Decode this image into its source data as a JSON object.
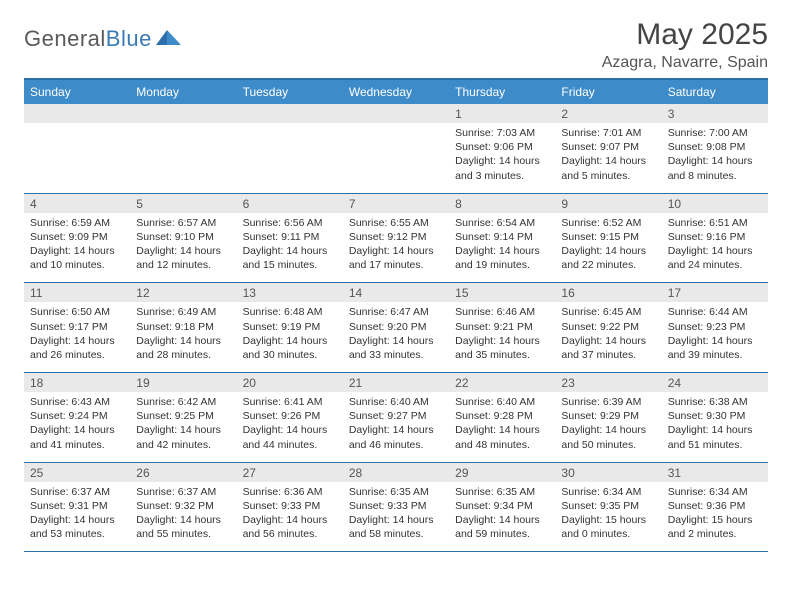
{
  "brand": {
    "name1": "General",
    "name2": "Blue"
  },
  "title": "May 2025",
  "location": "Azagra, Navarre, Spain",
  "day_headers": [
    "Sunday",
    "Monday",
    "Tuesday",
    "Wednesday",
    "Thursday",
    "Friday",
    "Saturday"
  ],
  "colors": {
    "header_bg": "#3d8bc8",
    "rule": "#2d6fa8",
    "daynum_bg": "#e9e9e9",
    "logo_blue": "#3a7ab8"
  },
  "labels": {
    "sunrise": "Sunrise:",
    "sunset": "Sunset:",
    "daylight": "Daylight:"
  },
  "weeks": [
    [
      null,
      null,
      null,
      null,
      {
        "n": "1",
        "sunrise": "7:03 AM",
        "sunset": "9:06 PM",
        "daylight": "14 hours and 3 minutes."
      },
      {
        "n": "2",
        "sunrise": "7:01 AM",
        "sunset": "9:07 PM",
        "daylight": "14 hours and 5 minutes."
      },
      {
        "n": "3",
        "sunrise": "7:00 AM",
        "sunset": "9:08 PM",
        "daylight": "14 hours and 8 minutes."
      }
    ],
    [
      {
        "n": "4",
        "sunrise": "6:59 AM",
        "sunset": "9:09 PM",
        "daylight": "14 hours and 10 minutes."
      },
      {
        "n": "5",
        "sunrise": "6:57 AM",
        "sunset": "9:10 PM",
        "daylight": "14 hours and 12 minutes."
      },
      {
        "n": "6",
        "sunrise": "6:56 AM",
        "sunset": "9:11 PM",
        "daylight": "14 hours and 15 minutes."
      },
      {
        "n": "7",
        "sunrise": "6:55 AM",
        "sunset": "9:12 PM",
        "daylight": "14 hours and 17 minutes."
      },
      {
        "n": "8",
        "sunrise": "6:54 AM",
        "sunset": "9:14 PM",
        "daylight": "14 hours and 19 minutes."
      },
      {
        "n": "9",
        "sunrise": "6:52 AM",
        "sunset": "9:15 PM",
        "daylight": "14 hours and 22 minutes."
      },
      {
        "n": "10",
        "sunrise": "6:51 AM",
        "sunset": "9:16 PM",
        "daylight": "14 hours and 24 minutes."
      }
    ],
    [
      {
        "n": "11",
        "sunrise": "6:50 AM",
        "sunset": "9:17 PM",
        "daylight": "14 hours and 26 minutes."
      },
      {
        "n": "12",
        "sunrise": "6:49 AM",
        "sunset": "9:18 PM",
        "daylight": "14 hours and 28 minutes."
      },
      {
        "n": "13",
        "sunrise": "6:48 AM",
        "sunset": "9:19 PM",
        "daylight": "14 hours and 30 minutes."
      },
      {
        "n": "14",
        "sunrise": "6:47 AM",
        "sunset": "9:20 PM",
        "daylight": "14 hours and 33 minutes."
      },
      {
        "n": "15",
        "sunrise": "6:46 AM",
        "sunset": "9:21 PM",
        "daylight": "14 hours and 35 minutes."
      },
      {
        "n": "16",
        "sunrise": "6:45 AM",
        "sunset": "9:22 PM",
        "daylight": "14 hours and 37 minutes."
      },
      {
        "n": "17",
        "sunrise": "6:44 AM",
        "sunset": "9:23 PM",
        "daylight": "14 hours and 39 minutes."
      }
    ],
    [
      {
        "n": "18",
        "sunrise": "6:43 AM",
        "sunset": "9:24 PM",
        "daylight": "14 hours and 41 minutes."
      },
      {
        "n": "19",
        "sunrise": "6:42 AM",
        "sunset": "9:25 PM",
        "daylight": "14 hours and 42 minutes."
      },
      {
        "n": "20",
        "sunrise": "6:41 AM",
        "sunset": "9:26 PM",
        "daylight": "14 hours and 44 minutes."
      },
      {
        "n": "21",
        "sunrise": "6:40 AM",
        "sunset": "9:27 PM",
        "daylight": "14 hours and 46 minutes."
      },
      {
        "n": "22",
        "sunrise": "6:40 AM",
        "sunset": "9:28 PM",
        "daylight": "14 hours and 48 minutes."
      },
      {
        "n": "23",
        "sunrise": "6:39 AM",
        "sunset": "9:29 PM",
        "daylight": "14 hours and 50 minutes."
      },
      {
        "n": "24",
        "sunrise": "6:38 AM",
        "sunset": "9:30 PM",
        "daylight": "14 hours and 51 minutes."
      }
    ],
    [
      {
        "n": "25",
        "sunrise": "6:37 AM",
        "sunset": "9:31 PM",
        "daylight": "14 hours and 53 minutes."
      },
      {
        "n": "26",
        "sunrise": "6:37 AM",
        "sunset": "9:32 PM",
        "daylight": "14 hours and 55 minutes."
      },
      {
        "n": "27",
        "sunrise": "6:36 AM",
        "sunset": "9:33 PM",
        "daylight": "14 hours and 56 minutes."
      },
      {
        "n": "28",
        "sunrise": "6:35 AM",
        "sunset": "9:33 PM",
        "daylight": "14 hours and 58 minutes."
      },
      {
        "n": "29",
        "sunrise": "6:35 AM",
        "sunset": "9:34 PM",
        "daylight": "14 hours and 59 minutes."
      },
      {
        "n": "30",
        "sunrise": "6:34 AM",
        "sunset": "9:35 PM",
        "daylight": "15 hours and 0 minutes."
      },
      {
        "n": "31",
        "sunrise": "6:34 AM",
        "sunset": "9:36 PM",
        "daylight": "15 hours and 2 minutes."
      }
    ]
  ]
}
